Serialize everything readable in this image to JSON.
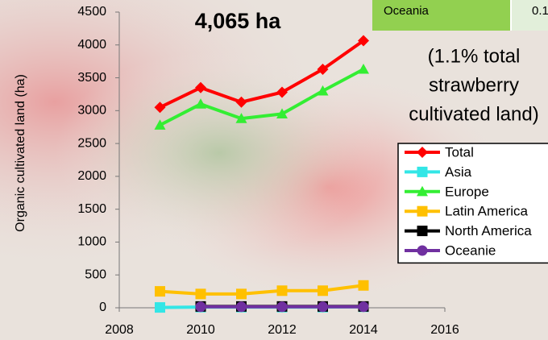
{
  "chart_data": {
    "type": "line",
    "title": "4,065 ha",
    "annotation_lines": [
      "(1.1% total",
      "strawberry",
      "cultivated land)"
    ],
    "table_snippet": [
      "Oceania",
      "0.1"
    ],
    "ylabel": "Organic cultivated land (ha)",
    "x": [
      2009,
      2010,
      2011,
      2012,
      2013,
      2014
    ],
    "xlim": [
      2008,
      2016
    ],
    "xticks": [
      2008,
      2010,
      2012,
      2014,
      2016
    ],
    "ylim": [
      0,
      4500
    ],
    "yticks": [
      0,
      500,
      1000,
      1500,
      2000,
      2500,
      3000,
      3500,
      4000,
      4500
    ],
    "grid": false,
    "legend": "right",
    "series": [
      {
        "name": "Total",
        "color": "#ff0000",
        "marker": "diamond",
        "values": [
          3050,
          3350,
          3130,
          3280,
          3630,
          4065
        ]
      },
      {
        "name": "Asia",
        "color": "#33e6e6",
        "marker": "square",
        "values": [
          5,
          10,
          10,
          10,
          10,
          15
        ]
      },
      {
        "name": "Europe",
        "color": "#33ee33",
        "marker": "triangle",
        "values": [
          2780,
          3100,
          2880,
          2950,
          3300,
          3630
        ]
      },
      {
        "name": "Latin America",
        "color": "#ffc000",
        "marker": "square",
        "values": [
          250,
          210,
          210,
          260,
          260,
          340
        ]
      },
      {
        "name": "North America",
        "color": "#000000",
        "marker": "square",
        "values": [
          null,
          20,
          20,
          20,
          20,
          20
        ]
      },
      {
        "name": "Oceanie",
        "color": "#7030a0",
        "marker": "circle",
        "values": [
          null,
          15,
          15,
          15,
          15,
          15
        ]
      }
    ]
  }
}
